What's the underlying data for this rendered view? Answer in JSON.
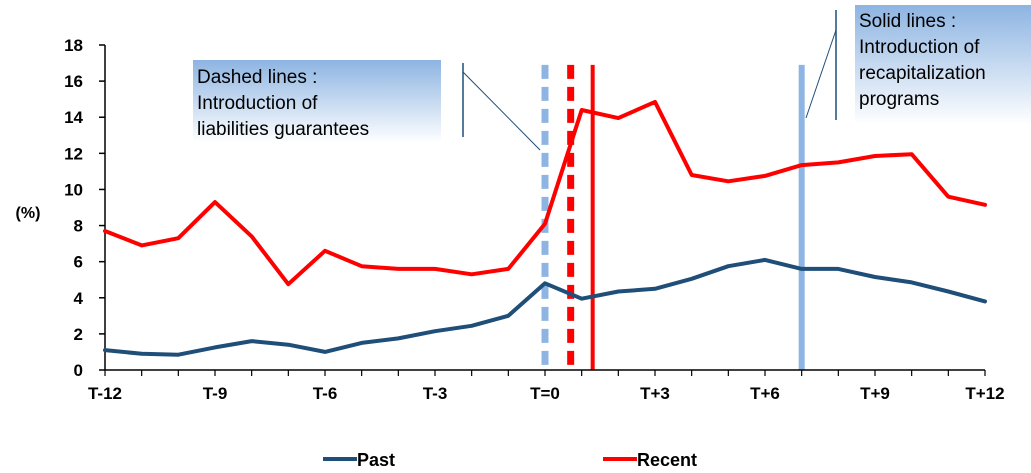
{
  "chart_data": {
    "type": "line",
    "title": "",
    "xlabel": "",
    "ylabel": "(%)",
    "ylim": [
      0,
      18
    ],
    "yticks": [
      "0",
      "2",
      "4",
      "6",
      "8",
      "10",
      "12",
      "14",
      "16",
      "18"
    ],
    "x_tick_labels": [
      "T-12",
      "T-9",
      "T-6",
      "T-3",
      "T=0",
      "T+3",
      "T+6",
      "T+9",
      "T+12"
    ],
    "x": [
      -12,
      -11,
      -10,
      -9,
      -8,
      -7,
      -6,
      -5,
      -4,
      -3,
      -2,
      -1,
      0,
      1,
      2,
      3,
      4,
      5,
      6,
      7,
      8,
      9,
      10,
      11,
      12
    ],
    "grid": false,
    "legend_position": "bottom",
    "series": [
      {
        "name": "Past",
        "color": "#1f4e79",
        "values": [
          1.1,
          0.9,
          0.85,
          1.25,
          1.6,
          1.4,
          1.0,
          1.5,
          1.75,
          2.15,
          2.45,
          3.0,
          4.8,
          3.95,
          4.35,
          4.5,
          5.05,
          5.75,
          6.1,
          5.6,
          5.6,
          5.15,
          4.85,
          4.35,
          3.8
        ]
      },
      {
        "name": "Recent",
        "color": "#ff0000",
        "values": [
          7.7,
          6.9,
          7.3,
          9.3,
          7.4,
          4.75,
          6.6,
          5.75,
          5.6,
          5.6,
          5.3,
          5.6,
          8.1,
          14.4,
          13.95,
          14.85,
          10.8,
          10.45,
          10.75,
          11.35,
          11.5,
          11.85,
          11.95,
          9.6,
          9.15
        ]
      }
    ],
    "reference_lines": [
      {
        "x": 0.0,
        "style": "dashed",
        "color": "#8db4e2"
      },
      {
        "x": 0.7,
        "style": "dashed",
        "color": "#ff0000"
      },
      {
        "x": 1.3,
        "style": "solid",
        "color": "#ff0000"
      },
      {
        "x": 7.0,
        "style": "solid",
        "color": "#8db4e2"
      }
    ],
    "annotations": [
      {
        "lines": [
          "Dashed lines :",
          "Introduction of",
          "liabilities guarantees"
        ]
      },
      {
        "lines": [
          "Solid lines :",
          "Introduction of",
          "recapitalization",
          "programs"
        ]
      }
    ]
  }
}
